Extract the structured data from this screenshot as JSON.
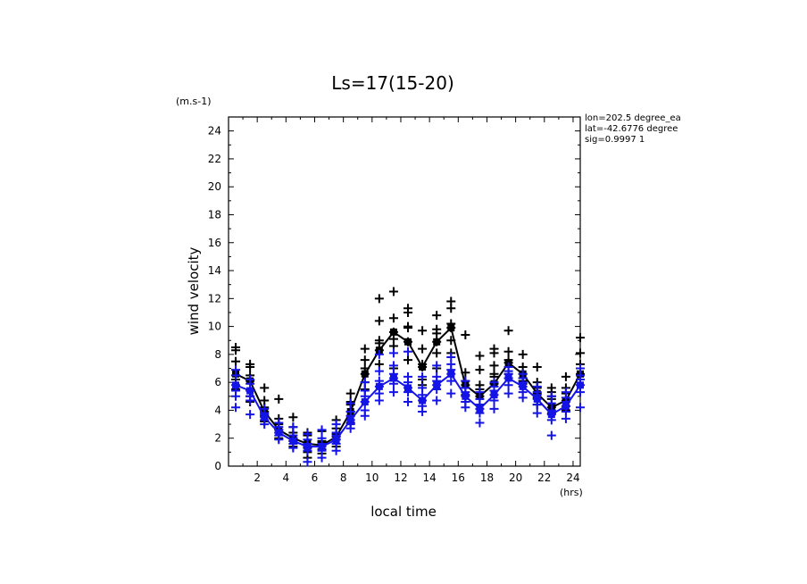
{
  "chart_data": {
    "type": "scatter",
    "title": "Ls=17(15-20)",
    "xlabel": "local time",
    "ylabel": "wind velocity",
    "x_unit": "(hrs)",
    "y_unit": "(m.s-1)",
    "xlim": [
      0,
      24.5
    ],
    "ylim": [
      0,
      25
    ],
    "xticks": [
      2,
      4,
      6,
      8,
      10,
      12,
      14,
      16,
      18,
      20,
      22,
      24
    ],
    "yticks": [
      0,
      2,
      4,
      6,
      8,
      10,
      12,
      14,
      16,
      18,
      20,
      22,
      24
    ],
    "annotations": [
      "lon=202.5 degree_ea",
      "lat=-42.6776 degree",
      "sig=0.9997 1"
    ],
    "series": [
      {
        "color": "#000000",
        "marker": "+",
        "x": [
          0.5,
          1.5,
          2.5,
          3.5,
          4.5,
          5.5,
          6.5,
          7.5,
          8.5,
          9.5,
          10.5,
          11.5,
          12.5,
          13.5,
          14.5,
          15.5,
          16.5,
          17.5,
          18.5,
          19.5,
          20.5,
          21.5,
          22.5,
          23.5,
          24.5
        ],
        "mean": [
          6.6,
          6.1,
          3.9,
          2.6,
          2.0,
          1.6,
          1.5,
          2.1,
          3.9,
          6.6,
          8.3,
          9.6,
          8.9,
          7.1,
          8.9,
          9.9,
          5.8,
          5.0,
          5.9,
          7.4,
          6.6,
          5.2,
          4.2,
          4.7,
          6.6
        ],
        "points": [
          [
            6.5,
            7.5,
            8.5,
            5.5,
            6.2,
            8.3
          ],
          [
            6.1,
            7.1,
            4.6,
            5.0,
            7.3,
            6.5
          ],
          [
            3.9,
            4.7,
            3.2,
            5.6,
            4.2,
            3.6
          ],
          [
            2.6,
            3.4,
            2.0,
            4.8,
            3.0,
            2.4
          ],
          [
            2.0,
            2.8,
            1.4,
            3.5,
            2.4,
            1.8
          ],
          [
            1.6,
            2.2,
            1.0,
            2.4,
            0.6,
            1.3
          ],
          [
            1.5,
            1.8,
            0.9,
            2.5,
            1.2,
            1.7
          ],
          [
            2.1,
            2.7,
            1.4,
            3.3,
            1.9,
            2.3
          ],
          [
            3.9,
            4.6,
            3.1,
            5.2,
            3.6,
            4.4
          ],
          [
            6.6,
            7.6,
            5.5,
            8.4,
            6.0,
            7.0
          ],
          [
            8.3,
            10.4,
            12.0,
            9.0,
            7.3,
            8.8
          ],
          [
            9.6,
            10.6,
            12.5,
            8.6,
            7.0,
            9.1
          ],
          [
            8.9,
            11.3,
            10.0,
            9.9,
            7.6,
            11.0
          ],
          [
            7.1,
            8.4,
            9.7,
            6.2,
            5.8,
            7.3
          ],
          [
            8.9,
            9.8,
            10.8,
            8.1,
            7.0,
            9.5
          ],
          [
            9.9,
            11.8,
            11.3,
            9.0,
            8.1,
            10.2
          ],
          [
            5.8,
            6.7,
            9.4,
            5.1,
            4.6,
            6.1
          ],
          [
            5.0,
            5.8,
            7.9,
            4.4,
            6.9,
            5.5
          ],
          [
            5.9,
            7.2,
            8.1,
            6.4,
            6.6,
            8.4
          ],
          [
            7.4,
            8.2,
            9.7,
            6.3,
            6.6,
            7.6
          ],
          [
            6.6,
            8.0,
            7.1,
            6.1,
            5.9,
            6.3
          ],
          [
            5.2,
            6.0,
            7.1,
            4.9,
            4.4,
            5.6
          ],
          [
            4.2,
            5.3,
            4.8,
            3.8,
            5.0,
            5.6
          ],
          [
            4.7,
            5.6,
            6.4,
            4.3,
            4.0,
            5.2
          ],
          [
            6.6,
            8.1,
            9.2,
            6.2,
            7.3,
            6.5
          ]
        ]
      },
      {
        "color": "#1414e6",
        "marker": "+",
        "x": [
          0.5,
          1.5,
          2.5,
          3.5,
          4.5,
          5.5,
          6.5,
          7.5,
          8.5,
          9.5,
          10.5,
          11.5,
          12.5,
          13.5,
          14.5,
          15.5,
          16.5,
          17.5,
          18.5,
          19.5,
          20.5,
          21.5,
          22.5,
          23.5,
          24.5
        ],
        "mean": [
          5.8,
          5.4,
          3.5,
          2.4,
          1.8,
          1.4,
          1.4,
          1.9,
          3.3,
          4.6,
          5.7,
          6.3,
          5.6,
          4.7,
          5.8,
          6.6,
          5.0,
          4.1,
          5.1,
          6.3,
          5.7,
          4.8,
          3.7,
          4.3,
          5.8
        ],
        "points": [
          [
            5.8,
            6.9,
            4.2,
            5.4,
            6.5,
            5.0
          ],
          [
            5.4,
            6.2,
            3.7,
            4.7,
            5.9,
            5.0
          ],
          [
            3.5,
            4.1,
            3.0,
            3.8,
            3.3,
            3.7
          ],
          [
            2.4,
            2.8,
            1.9,
            3.1,
            2.2,
            2.6
          ],
          [
            1.8,
            2.2,
            1.3,
            2.8,
            1.6,
            2.0
          ],
          [
            1.4,
            1.9,
            0.3,
            1.1,
            2.3,
            1.6
          ],
          [
            1.4,
            2.0,
            0.6,
            1.1,
            2.6,
            1.6
          ],
          [
            1.9,
            2.4,
            1.1,
            3.0,
            1.6,
            2.2
          ],
          [
            3.3,
            3.9,
            2.7,
            4.5,
            3.0,
            3.6
          ],
          [
            4.6,
            5.4,
            3.6,
            6.0,
            4.0,
            5.0
          ],
          [
            5.7,
            6.8,
            4.7,
            8.0,
            5.2,
            6.1
          ],
          [
            6.3,
            7.2,
            5.3,
            8.1,
            5.9,
            6.6
          ],
          [
            5.6,
            6.4,
            4.6,
            8.2,
            5.3,
            6.0
          ],
          [
            4.7,
            5.6,
            3.9,
            6.4,
            4.3,
            5.1
          ],
          [
            5.8,
            6.4,
            4.7,
            7.2,
            5.5,
            6.1
          ],
          [
            6.6,
            7.3,
            5.2,
            7.8,
            6.1,
            6.9
          ],
          [
            5.0,
            5.6,
            4.2,
            6.1,
            4.6,
            5.3
          ],
          [
            4.1,
            4.8,
            3.1,
            5.3,
            3.8,
            4.4
          ],
          [
            5.1,
            5.7,
            4.1,
            6.0,
            4.7,
            5.4
          ],
          [
            6.3,
            6.8,
            5.2,
            7.1,
            5.8,
            6.6
          ],
          [
            5.7,
            6.3,
            4.9,
            6.6,
            5.3,
            6.0
          ],
          [
            4.8,
            5.3,
            3.8,
            5.7,
            4.4,
            5.1
          ],
          [
            3.7,
            4.5,
            2.2,
            5.0,
            3.3,
            4.0
          ],
          [
            4.3,
            4.9,
            3.4,
            5.3,
            3.9,
            4.6
          ],
          [
            5.8,
            6.5,
            4.2,
            7.0,
            5.3,
            6.2
          ]
        ]
      }
    ]
  }
}
